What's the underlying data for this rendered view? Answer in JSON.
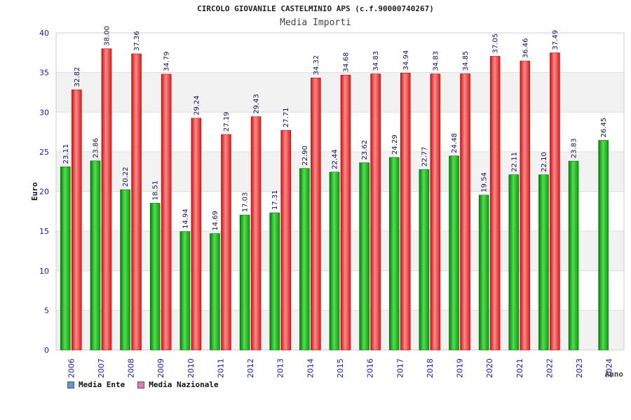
{
  "header": {
    "title": "CIRCOLO GIOVANILE CASTELMINIO APS (c.f.90000740267)",
    "subtitle": "Media Importi"
  },
  "chart_data": {
    "type": "bar",
    "title": "Media Importi",
    "xlabel": "Anno",
    "ylabel": "Euro",
    "ylim": [
      0,
      40
    ],
    "yticks": [
      0,
      5,
      10,
      15,
      20,
      25,
      30,
      35,
      40
    ],
    "grid": true,
    "legend_position": "bottom-left",
    "categories": [
      "2006",
      "2007",
      "2008",
      "2009",
      "2010",
      "2011",
      "2012",
      "2013",
      "2014",
      "2015",
      "2016",
      "2017",
      "2018",
      "2019",
      "2020",
      "2021",
      "2022",
      "2023",
      "2024"
    ],
    "series": [
      {
        "name": "Media Ente",
        "legend_color": "#5b9bd5",
        "bar_color": "#1fb51f",
        "values": [
          23.11,
          23.86,
          20.22,
          18.51,
          14.94,
          14.69,
          17.03,
          17.31,
          22.9,
          22.44,
          23.62,
          24.29,
          22.77,
          24.48,
          19.54,
          22.11,
          22.1,
          23.83,
          26.45
        ],
        "labels": [
          "23.11",
          "23.86",
          "20.22",
          "18.51",
          "14.94",
          "14.69",
          "17.03",
          "17.31",
          "22.90",
          "22.44",
          "23.62",
          "24.29",
          "22.77",
          "24.48",
          "19.54",
          "22.11",
          "22.10",
          "23.83",
          "26.45"
        ]
      },
      {
        "name": "Media Nazionale",
        "legend_color": "#e27fae",
        "bar_color": "#ee2222",
        "values": [
          32.82,
          38.0,
          37.36,
          34.79,
          29.24,
          27.19,
          29.43,
          27.71,
          34.32,
          34.68,
          34.83,
          34.94,
          34.83,
          34.85,
          37.05,
          36.46,
          37.49,
          null,
          null
        ],
        "labels": [
          "32.82",
          "38.00",
          "37.36",
          "34.79",
          "29.24",
          "27.19",
          "29.43",
          "27.71",
          "34.32",
          "34.68",
          "34.83",
          "34.94",
          "34.83",
          "34.85",
          "37.05",
          "36.46",
          "37.49",
          null,
          null
        ]
      }
    ]
  }
}
